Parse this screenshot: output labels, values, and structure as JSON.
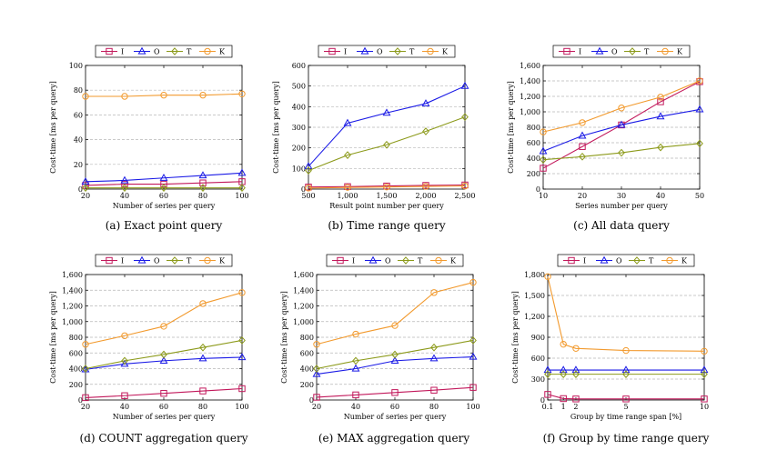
{
  "figure": {
    "colors": {
      "I": "#c2185b",
      "O": "#1a1ae6",
      "T": "#8c9a1a",
      "K": "#f29a2e"
    },
    "legend_labels": [
      "I",
      "O",
      "T",
      "K"
    ]
  },
  "chart_data": [
    {
      "type": "line",
      "caption": "(a) Exact point query",
      "xlabel": "Number of series per query",
      "ylabel": "Cost-time [ms per query]",
      "x": [
        20,
        40,
        60,
        80,
        100
      ],
      "xticks": [
        "20",
        "40",
        "60",
        "80",
        "100"
      ],
      "xlim": [
        20,
        100
      ],
      "ylim": [
        0,
        100
      ],
      "yticks": [
        0,
        20,
        40,
        60,
        80,
        100
      ],
      "ytick_labels": [
        "0",
        "20",
        "40",
        "60",
        "80",
        "100"
      ],
      "grid": true,
      "series": [
        {
          "name": "I",
          "values": [
            3,
            4,
            4,
            5,
            6
          ]
        },
        {
          "name": "O",
          "values": [
            6,
            7,
            9,
            11,
            13
          ]
        },
        {
          "name": "T",
          "values": [
            1,
            1,
            1,
            1,
            1
          ]
        },
        {
          "name": "K",
          "values": [
            75,
            75,
            76,
            76,
            77
          ]
        }
      ]
    },
    {
      "type": "line",
      "caption": "(b) Time range query",
      "xlabel": "Result point number per query",
      "ylabel": "Cost-time [ms per query]",
      "x": [
        500,
        1000,
        1500,
        2000,
        2500
      ],
      "xticks": [
        "500",
        "1,000",
        "1,500",
        "2,000",
        "2,500"
      ],
      "xlim": [
        500,
        2500
      ],
      "ylim": [
        0,
        600
      ],
      "yticks": [
        0,
        100,
        200,
        300,
        400,
        500,
        600
      ],
      "ytick_labels": [
        "0",
        "100",
        "200",
        "300",
        "400",
        "500",
        "600"
      ],
      "grid": true,
      "series": [
        {
          "name": "I",
          "values": [
            10,
            12,
            15,
            18,
            20
          ]
        },
        {
          "name": "O",
          "values": [
            110,
            320,
            370,
            415,
            500
          ]
        },
        {
          "name": "T",
          "values": [
            90,
            165,
            215,
            280,
            350
          ]
        },
        {
          "name": "K",
          "values": [
            5,
            8,
            10,
            13,
            15
          ]
        }
      ]
    },
    {
      "type": "line",
      "caption": "(c) All data query",
      "xlabel": "Series number per query",
      "ylabel": "Cost-time [ms per query]",
      "x": [
        10,
        20,
        30,
        40,
        50
      ],
      "xticks": [
        "10",
        "20",
        "30",
        "40",
        "50"
      ],
      "xlim": [
        10,
        50
      ],
      "ylim": [
        0,
        1600
      ],
      "yticks": [
        0,
        200,
        400,
        600,
        800,
        1000,
        1200,
        1400,
        1600
      ],
      "ytick_labels": [
        "0",
        "200",
        "400",
        "600",
        "800",
        "1,000",
        "1,200",
        "1,400",
        "1,600"
      ],
      "grid": true,
      "series": [
        {
          "name": "I",
          "values": [
            270,
            550,
            830,
            1130,
            1390
          ]
        },
        {
          "name": "O",
          "values": [
            490,
            690,
            830,
            940,
            1030
          ]
        },
        {
          "name": "T",
          "values": [
            380,
            420,
            470,
            540,
            590
          ]
        },
        {
          "name": "K",
          "values": [
            740,
            860,
            1050,
            1190,
            1400
          ]
        }
      ]
    },
    {
      "type": "line",
      "caption": "(d) COUNT aggregation query",
      "xlabel": "Number of series per query",
      "ylabel": "Cost-time [ms per query]",
      "x": [
        20,
        40,
        60,
        80,
        100
      ],
      "xticks": [
        "20",
        "40",
        "60",
        "80",
        "100"
      ],
      "xlim": [
        20,
        100
      ],
      "ylim": [
        0,
        1600
      ],
      "yticks": [
        0,
        200,
        400,
        600,
        800,
        1000,
        1200,
        1400,
        1600
      ],
      "ytick_labels": [
        "0",
        "200",
        "400",
        "600",
        "800",
        "1,000",
        "1,200",
        "1,400",
        "1,600"
      ],
      "grid": true,
      "series": [
        {
          "name": "I",
          "values": [
            30,
            55,
            85,
            115,
            145
          ]
        },
        {
          "name": "O",
          "values": [
            390,
            460,
            500,
            530,
            545
          ]
        },
        {
          "name": "T",
          "values": [
            400,
            500,
            580,
            670,
            760
          ]
        },
        {
          "name": "K",
          "values": [
            710,
            820,
            940,
            1230,
            1370
          ]
        }
      ]
    },
    {
      "type": "line",
      "caption": "(e) MAX aggregation query",
      "xlabel": "Number of series per query",
      "ylabel": "Cost-time [ms per query]",
      "x": [
        20,
        40,
        60,
        80,
        100
      ],
      "xticks": [
        "20",
        "40",
        "60",
        "80",
        "100"
      ],
      "xlim": [
        20,
        100
      ],
      "ylim": [
        0,
        1600
      ],
      "yticks": [
        0,
        200,
        400,
        600,
        800,
        1000,
        1200,
        1400,
        1600
      ],
      "ytick_labels": [
        "0",
        "200",
        "400",
        "600",
        "800",
        "1,000",
        "1,200",
        "1,400",
        "1,600"
      ],
      "grid": true,
      "series": [
        {
          "name": "I",
          "values": [
            35,
            65,
            95,
            125,
            160
          ]
        },
        {
          "name": "O",
          "values": [
            330,
            400,
            500,
            530,
            550
          ]
        },
        {
          "name": "T",
          "values": [
            400,
            500,
            580,
            670,
            760
          ]
        },
        {
          "name": "K",
          "values": [
            710,
            840,
            950,
            1370,
            1500
          ]
        }
      ]
    },
    {
      "type": "line",
      "caption": "(f) Group by time range query",
      "xlabel": "Group by time range span [%]",
      "ylabel": "Cost-time [ms per query]",
      "x": [
        0.1,
        1,
        2,
        5,
        10
      ],
      "xticks": [
        "0.1",
        "1",
        "2",
        "5",
        "10"
      ],
      "xlim": [
        0.1,
        10
      ],
      "ylim": [
        0,
        1800
      ],
      "yticks": [
        0,
        300,
        600,
        900,
        1200,
        1500,
        1800
      ],
      "ytick_labels": [
        "0",
        "300",
        "600",
        "900",
        "1,200",
        "1,500",
        "1,800"
      ],
      "grid": true,
      "series": [
        {
          "name": "I",
          "values": [
            80,
            20,
            15,
            15,
            15
          ]
        },
        {
          "name": "O",
          "values": [
            430,
            430,
            430,
            430,
            430
          ]
        },
        {
          "name": "T",
          "values": [
            370,
            370,
            370,
            370,
            370
          ]
        },
        {
          "name": "K",
          "values": [
            1770,
            800,
            740,
            710,
            700
          ]
        }
      ]
    }
  ]
}
